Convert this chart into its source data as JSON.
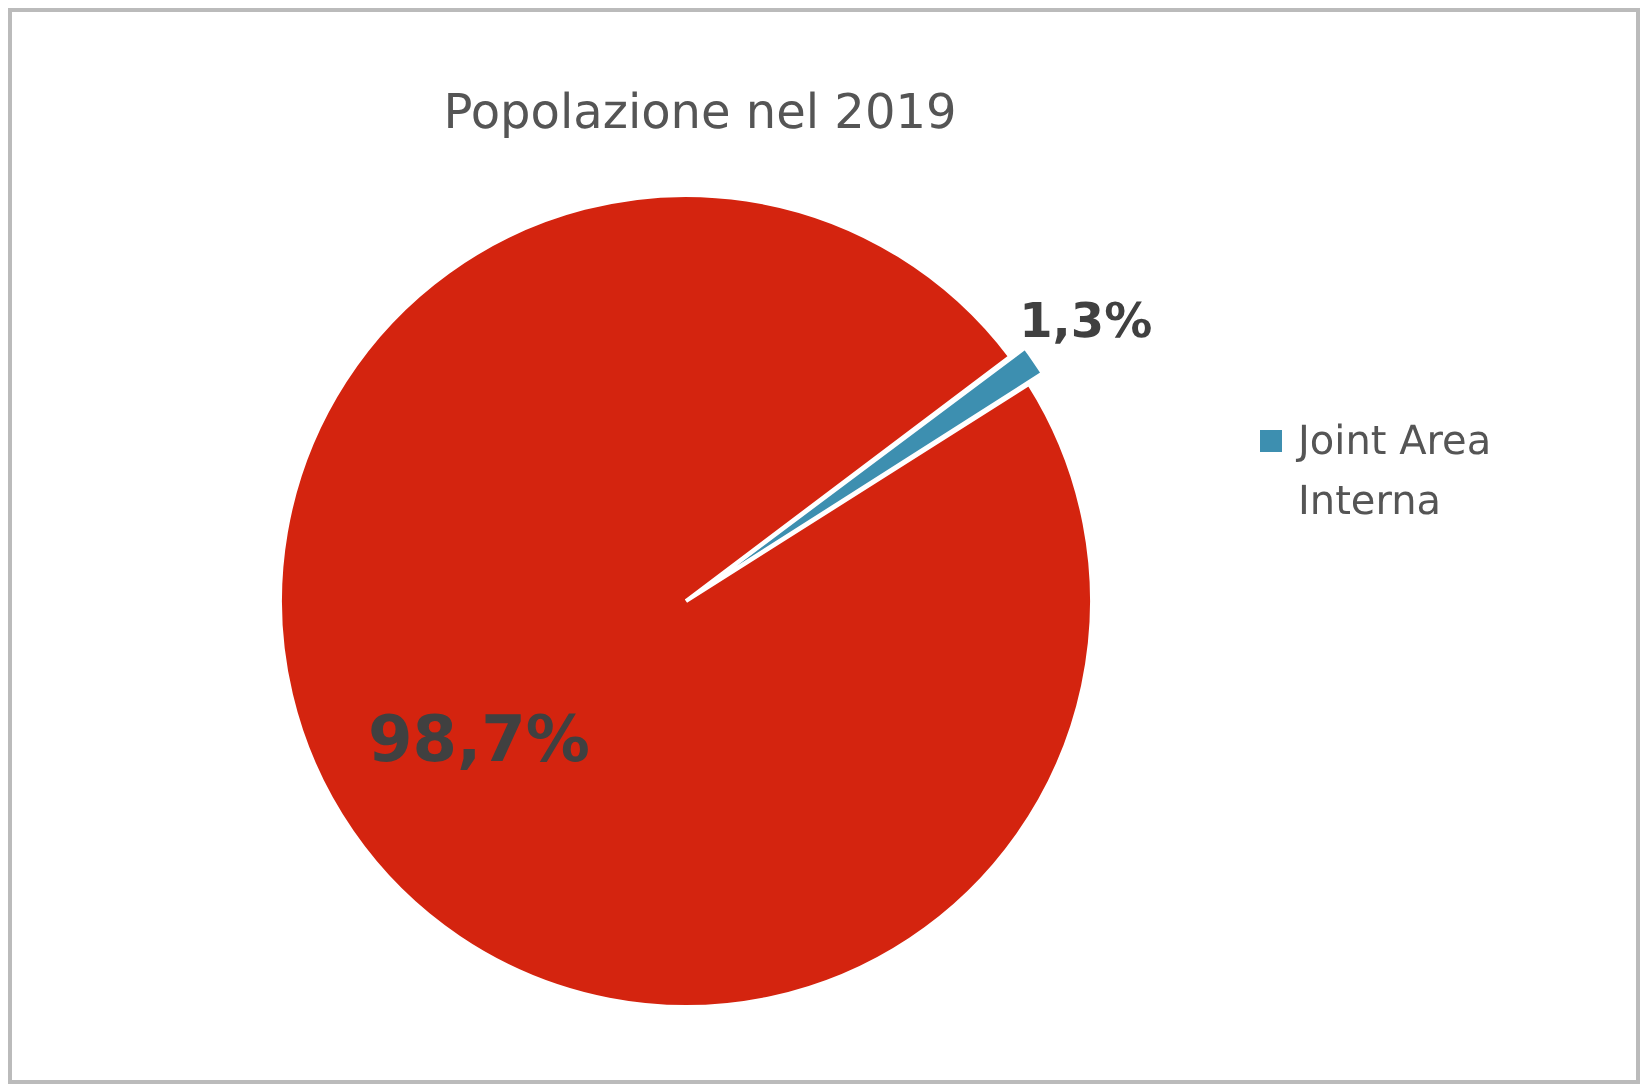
{
  "chart_data": {
    "type": "pie",
    "title": "Popolazione nel 2019",
    "categories": [
      "Joint Area Interna",
      null
    ],
    "values": [
      1.3,
      98.7
    ],
    "colors": [
      "#3d8fb0",
      "#d4240f"
    ],
    "value_labels": [
      "1,3%",
      "98,7%"
    ],
    "legend": "right"
  }
}
